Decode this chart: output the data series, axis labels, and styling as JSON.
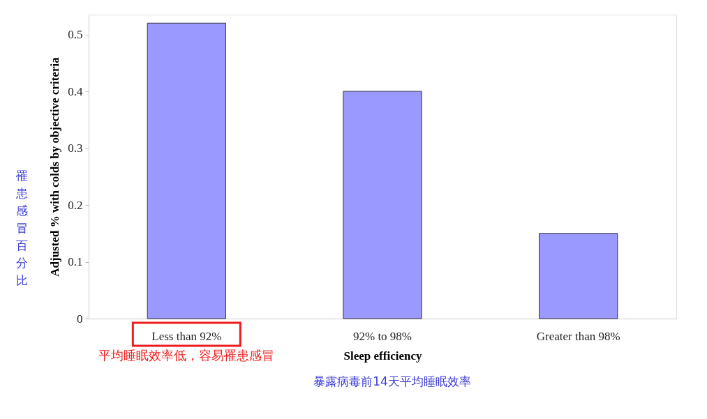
{
  "chart_data": {
    "type": "bar",
    "xlabel": "Sleep efficiency",
    "ylabel": "Adjusted % with colds by objective criteria",
    "categories": [
      "Less than 92%",
      "92% to 98%",
      "Greater than 98%"
    ],
    "values": [
      0.52,
      0.4,
      0.15
    ],
    "color": "#9999ff",
    "ylim": [
      0,
      0.535
    ],
    "yticks": [
      0,
      0.1,
      0.2,
      0.3,
      0.4,
      0.5
    ],
    "grid": false,
    "annotations": [
      "罹患感冒百分比",
      "平均睡眠效率低，容易罹患感冒",
      "暴露病毒前14天平均睡眠效率"
    ]
  }
}
